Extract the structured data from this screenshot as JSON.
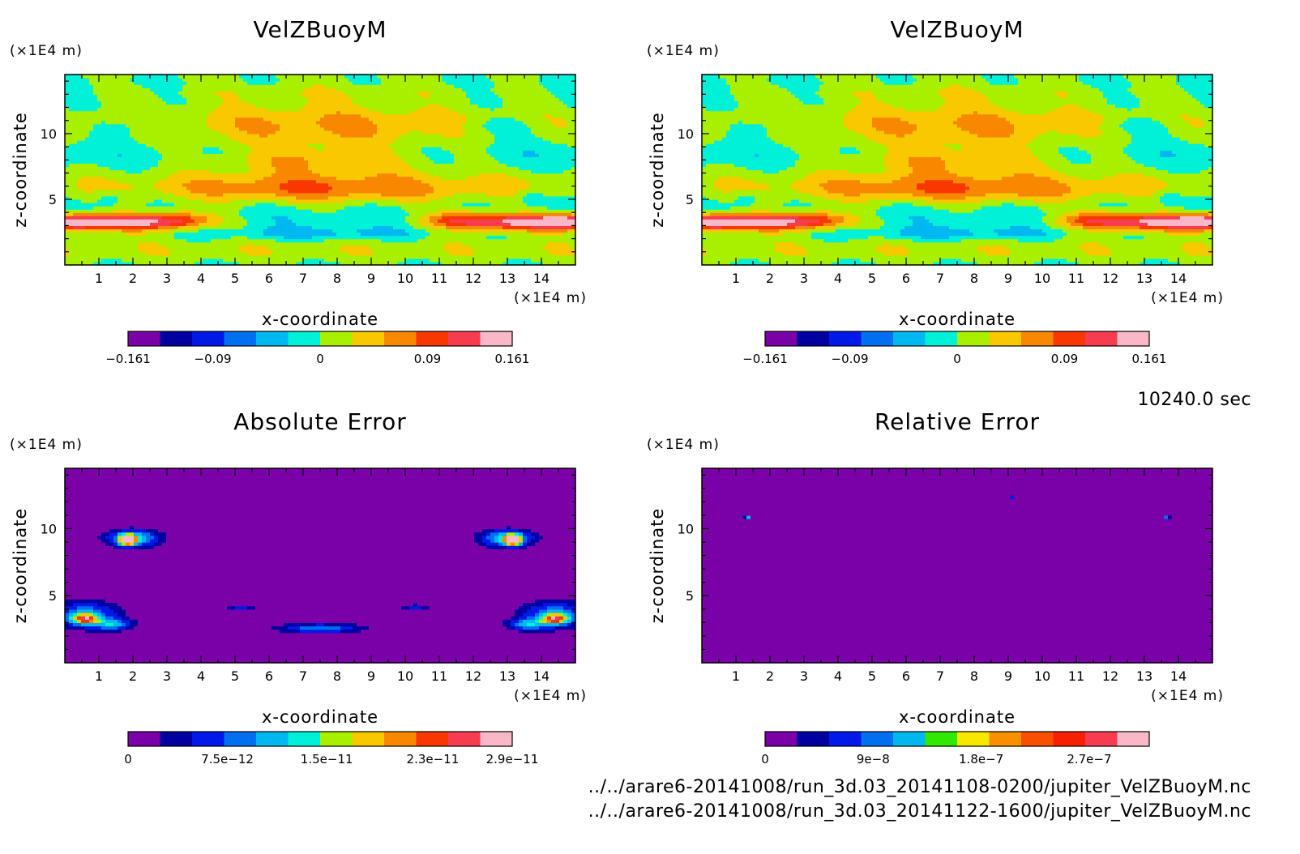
{
  "chart_data": [
    {
      "type": "contour",
      "title": "VelZBuoyM",
      "xlabel": "x-coordinate",
      "ylabel": "z-coordinate",
      "x_unit": "(×1E4 m)",
      "y_unit": "(×1E4 m)",
      "xlim": [
        0,
        15
      ],
      "ylim": [
        0,
        14.5
      ],
      "xticks": [
        "1",
        "2",
        "3",
        "4",
        "5",
        "6",
        "7",
        "8",
        "9",
        "10",
        "11",
        "12",
        "13",
        "14"
      ],
      "yticks": [
        "5",
        "10"
      ],
      "field": "velocity",
      "colorbar": {
        "range": [
          -0.161,
          0.161
        ],
        "tick_labels": [
          "−0.161",
          "−0.09",
          "0",
          "0.09",
          "0.161"
        ],
        "tick_values": [
          -0.161,
          -0.09,
          0,
          0.09,
          0.161
        ],
        "colors": [
          "#7a00a8",
          "#0000a0",
          "#0018e8",
          "#0070f0",
          "#00b8f0",
          "#00f0d8",
          "#a8f000",
          "#f8c800",
          "#f88800",
          "#f83800",
          "#f83c50",
          "#f8b8c8"
        ]
      }
    },
    {
      "type": "contour",
      "title": "VelZBuoyM",
      "xlabel": "x-coordinate",
      "ylabel": "z-coordinate",
      "x_unit": "(×1E4 m)",
      "y_unit": "(×1E4 m)",
      "xlim": [
        0,
        15
      ],
      "ylim": [
        0,
        14.5
      ],
      "xticks": [
        "1",
        "2",
        "3",
        "4",
        "5",
        "6",
        "7",
        "8",
        "9",
        "10",
        "11",
        "12",
        "13",
        "14"
      ],
      "yticks": [
        "5",
        "10"
      ],
      "field": "velocity",
      "colorbar": {
        "range": [
          -0.161,
          0.161
        ],
        "tick_labels": [
          "−0.161",
          "−0.09",
          "0",
          "0.09",
          "0.161"
        ],
        "tick_values": [
          -0.161,
          -0.09,
          0,
          0.09,
          0.161
        ],
        "colors": [
          "#7a00a8",
          "#0000a0",
          "#0018e8",
          "#0070f0",
          "#00b8f0",
          "#00f0d8",
          "#a8f000",
          "#f8c800",
          "#f88800",
          "#f83800",
          "#f83c50",
          "#f8b8c8"
        ]
      }
    },
    {
      "type": "contour",
      "title": "Absolute Error",
      "xlabel": "x-coordinate",
      "ylabel": "z-coordinate",
      "x_unit": "(×1E4 m)",
      "y_unit": "(×1E4 m)",
      "xlim": [
        0,
        15
      ],
      "ylim": [
        0,
        14.5
      ],
      "xticks": [
        "1",
        "2",
        "3",
        "4",
        "5",
        "6",
        "7",
        "8",
        "9",
        "10",
        "11",
        "12",
        "13",
        "14"
      ],
      "yticks": [
        "5",
        "10"
      ],
      "field": "abserr",
      "colorbar": {
        "range": [
          0,
          2.9e-11
        ],
        "tick_labels": [
          "0",
          "7.5e−12",
          "1.5e−11",
          "2.3e−11",
          "2.9e−11"
        ],
        "tick_values": [
          0,
          7.5e-12,
          1.5e-11,
          2.3e-11,
          2.9e-11
        ],
        "colors": [
          "#7a00a8",
          "#0000a0",
          "#0018e8",
          "#0070f0",
          "#00b8f0",
          "#00f0d8",
          "#a8f000",
          "#f8c800",
          "#f88800",
          "#f83800",
          "#f83c50",
          "#f8b8c8"
        ]
      }
    },
    {
      "type": "contour",
      "title": "Relative Error",
      "xlabel": "x-coordinate",
      "ylabel": "z-coordinate",
      "x_unit": "(×1E4 m)",
      "y_unit": "(×1E4 m)",
      "xlim": [
        0,
        15
      ],
      "ylim": [
        0,
        14.5
      ],
      "xticks": [
        "1",
        "2",
        "3",
        "4",
        "5",
        "6",
        "7",
        "8",
        "9",
        "10",
        "11",
        "12",
        "13",
        "14"
      ],
      "yticks": [
        "5",
        "10"
      ],
      "field": "relerr",
      "colorbar": {
        "range": [
          0,
          3.2e-07
        ],
        "tick_labels": [
          "0",
          "9e−8",
          "1.8e−7",
          "2.7e−7"
        ],
        "tick_values": [
          0,
          9e-08,
          1.8e-07,
          2.7e-07
        ],
        "colors": [
          "#7a00a8",
          "#0000a0",
          "#0018e8",
          "#0070f0",
          "#00b8f0",
          "#30e800",
          "#f8e800",
          "#f89000",
          "#f85000",
          "#f82000",
          "#f83c50",
          "#f8b8c8"
        ]
      }
    }
  ],
  "time_label": "10240.0 sec",
  "files": [
    "../../arare6-20141008/run_3d.03_20141108-0200/jupiter_VelZBuoyM.nc",
    "../../arare6-20141008/run_3d.03_20141122-1600/jupiter_VelZBuoyM.nc"
  ]
}
